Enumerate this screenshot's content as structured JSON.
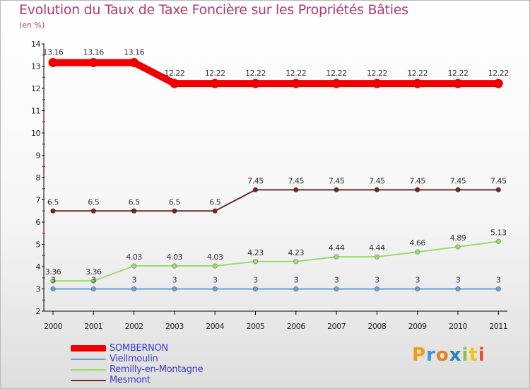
{
  "chart_data": {
    "type": "line",
    "title": "Evolution du Taux de Taxe Foncière sur les Propriétés Bâties",
    "subtitle": "(en %)",
    "categories": [
      "2000",
      "2001",
      "2002",
      "2003",
      "2004",
      "2005",
      "2006",
      "2007",
      "2008",
      "2009",
      "2010",
      "2011"
    ],
    "ylim": [
      2,
      14
    ],
    "yticks": [
      "2",
      "3",
      "4",
      "5",
      "6",
      "7",
      "8",
      "9",
      "10",
      "11",
      "12",
      "13",
      "14"
    ],
    "series": [
      {
        "name": "SOMBERNON",
        "color": "#ee0000",
        "values": [
          13.16,
          13.16,
          13.16,
          12.22,
          12.22,
          12.22,
          12.22,
          12.22,
          12.22,
          12.22,
          12.22,
          12.22
        ],
        "labels": [
          "13.16",
          "13.16",
          "13.16",
          "12.22",
          "12.22",
          "12.22",
          "12.22",
          "12.22",
          "12.22",
          "12.22",
          "12.22",
          "12.22"
        ]
      },
      {
        "name": "Vieilmoulin",
        "color": "#6a9fcf",
        "values": [
          3,
          3,
          3,
          3,
          3,
          3,
          3,
          3,
          3,
          3,
          3,
          3
        ],
        "labels": [
          "3",
          "3",
          "3",
          "3",
          "3",
          "3",
          "3",
          "3",
          "3",
          "3",
          "3",
          "3"
        ]
      },
      {
        "name": "Remilly-en-Montagne",
        "color": "#98dc6e",
        "values": [
          3.36,
          3.36,
          4.03,
          4.03,
          4.03,
          4.23,
          4.23,
          4.44,
          4.44,
          4.66,
          4.89,
          5.13
        ],
        "labels": [
          "3.36",
          "3.36",
          "4.03",
          "4.03",
          "4.03",
          "4.23",
          "4.23",
          "4.44",
          "4.44",
          "4.66",
          "4.89",
          "5.13"
        ]
      },
      {
        "name": "Mesmont",
        "color": "#6b2a2a",
        "values": [
          6.5,
          6.5,
          6.5,
          6.5,
          6.5,
          7.45,
          7.45,
          7.45,
          7.45,
          7.45,
          7.45,
          7.45
        ],
        "labels": [
          "6.5",
          "6.5",
          "6.5",
          "6.5",
          "6.5",
          "7.45",
          "7.45",
          "7.45",
          "7.45",
          "7.45",
          "7.45",
          "7.45"
        ]
      }
    ],
    "legend_position": "bottom-left"
  },
  "brand": {
    "logo": [
      "P",
      "r",
      "o",
      "x",
      "i",
      "t",
      "i"
    ],
    "logo_colors": [
      "#f39c12",
      "#3498db",
      "#e67e22",
      "#2980b9",
      "#8bc34a",
      "#f1c40f",
      "#e74c3c"
    ]
  }
}
